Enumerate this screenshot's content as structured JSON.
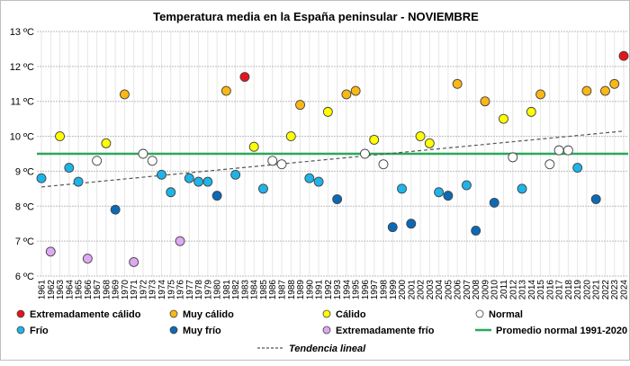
{
  "chart_data": {
    "type": "scatter",
    "title": "Temperatura media en la España peninsular - NOVIEMBRE",
    "xlabel": "",
    "ylabel": "",
    "ylim": [
      6,
      13
    ],
    "y_ticks": [
      "6 ºC",
      "7 ºC",
      "8 ºC",
      "9 ºC",
      "10 ºC",
      "11 ºC",
      "12 ºC",
      "13 ºC"
    ],
    "grid": true,
    "normal_value": 9.5,
    "trend": {
      "start_year": 1961,
      "start_value": 8.55,
      "end_year": 2024,
      "end_value": 10.15
    },
    "categories": {
      "ec": {
        "label": "Extremadamente cálido",
        "color": "#e8141b"
      },
      "mc": {
        "label": "Muy cálido",
        "color": "#fbb714"
      },
      "c": {
        "label": "Cálido",
        "color": "#ffff00"
      },
      "n": {
        "label": "Normal",
        "color": "#ffffff"
      },
      "f": {
        "label": "Frío",
        "color": "#1eb4ea"
      },
      "mf": {
        "label": "Muy frío",
        "color": "#0b6ab8"
      },
      "ef": {
        "label": "Extremadamente frío",
        "color": "#dea8f2"
      }
    },
    "legend": {
      "normal_line": "Promedio normal 1991-2020",
      "normal_color": "#2aa85a",
      "trend_line": "Tendencia lineal",
      "placement": "bottom"
    },
    "points": [
      [
        1961,
        8.8,
        "f"
      ],
      [
        1962,
        6.7,
        "ef"
      ],
      [
        1963,
        10.0,
        "c"
      ],
      [
        1964,
        9.1,
        "f"
      ],
      [
        1965,
        8.7,
        "f"
      ],
      [
        1966,
        6.5,
        "ef"
      ],
      [
        1967,
        9.3,
        "n"
      ],
      [
        1968,
        9.8,
        "c"
      ],
      [
        1969,
        7.9,
        "mf"
      ],
      [
        1970,
        11.2,
        "mc"
      ],
      [
        1971,
        6.4,
        "ef"
      ],
      [
        1972,
        9.5,
        "n"
      ],
      [
        1973,
        9.3,
        "n"
      ],
      [
        1974,
        8.9,
        "f"
      ],
      [
        1975,
        8.4,
        "f"
      ],
      [
        1976,
        7.0,
        "ef"
      ],
      [
        1977,
        8.8,
        "f"
      ],
      [
        1978,
        8.7,
        "f"
      ],
      [
        1979,
        8.7,
        "f"
      ],
      [
        1980,
        8.3,
        "mf"
      ],
      [
        1981,
        11.3,
        "mc"
      ],
      [
        1982,
        8.9,
        "f"
      ],
      [
        1983,
        11.7,
        "ec"
      ],
      [
        1984,
        9.7,
        "c"
      ],
      [
        1985,
        8.5,
        "f"
      ],
      [
        1986,
        9.3,
        "n"
      ],
      [
        1987,
        9.2,
        "n"
      ],
      [
        1988,
        10.0,
        "c"
      ],
      [
        1989,
        10.9,
        "mc"
      ],
      [
        1990,
        8.8,
        "f"
      ],
      [
        1991,
        8.7,
        "f"
      ],
      [
        1992,
        10.7,
        "c"
      ],
      [
        1993,
        8.2,
        "mf"
      ],
      [
        1994,
        11.2,
        "mc"
      ],
      [
        1995,
        11.3,
        "mc"
      ],
      [
        1996,
        9.5,
        "n"
      ],
      [
        1997,
        9.9,
        "c"
      ],
      [
        1998,
        9.2,
        "n"
      ],
      [
        1999,
        7.4,
        "mf"
      ],
      [
        2000,
        8.5,
        "f"
      ],
      [
        2001,
        7.5,
        "mf"
      ],
      [
        2002,
        10.0,
        "c"
      ],
      [
        2003,
        9.8,
        "c"
      ],
      [
        2004,
        8.4,
        "f"
      ],
      [
        2005,
        8.3,
        "mf"
      ],
      [
        2006,
        11.5,
        "mc"
      ],
      [
        2007,
        8.6,
        "f"
      ],
      [
        2008,
        7.3,
        "mf"
      ],
      [
        2009,
        11.0,
        "mc"
      ],
      [
        2010,
        8.1,
        "mf"
      ],
      [
        2011,
        10.5,
        "c"
      ],
      [
        2012,
        9.4,
        "n"
      ],
      [
        2013,
        8.5,
        "f"
      ],
      [
        2014,
        10.7,
        "c"
      ],
      [
        2015,
        11.2,
        "mc"
      ],
      [
        2016,
        9.2,
        "n"
      ],
      [
        2017,
        9.6,
        "n"
      ],
      [
        2018,
        9.6,
        "n"
      ],
      [
        2019,
        9.1,
        "f"
      ],
      [
        2020,
        11.3,
        "mc"
      ],
      [
        2021,
        8.2,
        "mf"
      ],
      [
        2022,
        11.3,
        "mc"
      ],
      [
        2023,
        11.5,
        "mc"
      ],
      [
        2024,
        12.3,
        "ec"
      ]
    ]
  }
}
